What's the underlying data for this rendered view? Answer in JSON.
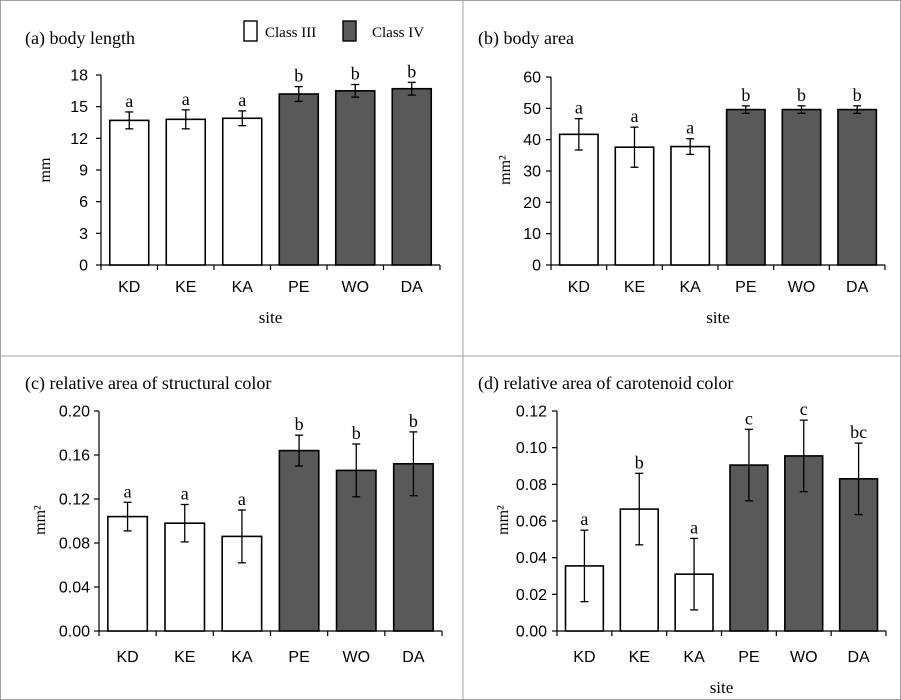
{
  "legend": {
    "items": [
      {
        "label": "Class III",
        "color": "#ffffff"
      },
      {
        "label": "Class IV",
        "color": "#595959"
      }
    ]
  },
  "chart_data": [
    {
      "type": "bar",
      "title": "(a) body length",
      "xlabel": "site",
      "ylabel": "mm",
      "categories": [
        "KD",
        "KE",
        "KA",
        "PE",
        "WO",
        "DA"
      ],
      "values": [
        13.7,
        13.8,
        13.9,
        16.2,
        16.5,
        16.7
      ],
      "errors": [
        0.8,
        0.9,
        0.7,
        0.7,
        0.6,
        0.6
      ],
      "letters": [
        "a",
        "a",
        "a",
        "b",
        "b",
        "b"
      ],
      "classes": [
        "Class III",
        "Class III",
        "Class III",
        "Class IV",
        "Class IV",
        "Class IV"
      ],
      "ylim": [
        0,
        18
      ],
      "yticks": [
        "0",
        "3",
        "6",
        "9",
        "12",
        "15",
        "18"
      ]
    },
    {
      "type": "bar",
      "title": "(b) body area",
      "xlabel": "site",
      "ylabel": "mm²",
      "categories": [
        "KD",
        "KE",
        "KA",
        "PE",
        "WO",
        "DA"
      ],
      "values": [
        41.7,
        37.6,
        37.8,
        49.6,
        49.6,
        49.6
      ],
      "errors": [
        5.0,
        6.4,
        2.5,
        1.2,
        1.2,
        1.2
      ],
      "letters": [
        "a",
        "a",
        "a",
        "b",
        "b",
        "b"
      ],
      "classes": [
        "Class III",
        "Class III",
        "Class III",
        "Class IV",
        "Class IV",
        "Class IV"
      ],
      "ylim": [
        0,
        60
      ],
      "yticks": [
        "0",
        "10",
        "20",
        "30",
        "40",
        "50",
        "60"
      ]
    },
    {
      "type": "bar",
      "title": "(c) relative area of  structural color",
      "xlabel": "",
      "ylabel": "mm²",
      "categories": [
        "KD",
        "KE",
        "KA",
        "PE",
        "WO",
        "DA"
      ],
      "values": [
        0.104,
        0.098,
        0.086,
        0.164,
        0.146,
        0.152
      ],
      "errors": [
        0.013,
        0.017,
        0.024,
        0.014,
        0.024,
        0.029
      ],
      "letters": [
        "a",
        "a",
        "a",
        "b",
        "b",
        "b"
      ],
      "classes": [
        "Class III",
        "Class III",
        "Class III",
        "Class IV",
        "Class IV",
        "Class IV"
      ],
      "ylim": [
        0,
        0.2
      ],
      "yticks": [
        "0.00",
        "0.04",
        "0.08",
        "0.12",
        "0.16",
        "0.20"
      ]
    },
    {
      "type": "bar",
      "title": "(d) relative area of  carotenoid color",
      "xlabel": "site",
      "ylabel": "mm²",
      "categories": [
        "KD",
        "KE",
        "KA",
        "PE",
        "WO",
        "DA"
      ],
      "values": [
        0.0355,
        0.0665,
        0.031,
        0.0905,
        0.0955,
        0.083
      ],
      "errors": [
        0.0195,
        0.0195,
        0.0195,
        0.0195,
        0.0195,
        0.0195
      ],
      "letters": [
        "a",
        "b",
        "a",
        "c",
        "c",
        "bc"
      ],
      "classes": [
        "Class III",
        "Class III",
        "Class III",
        "Class IV",
        "Class IV",
        "Class IV"
      ],
      "ylim": [
        0,
        0.12
      ],
      "yticks": [
        "0.00",
        "0.02",
        "0.04",
        "0.06",
        "0.08",
        "0.10",
        "0.12"
      ]
    }
  ]
}
